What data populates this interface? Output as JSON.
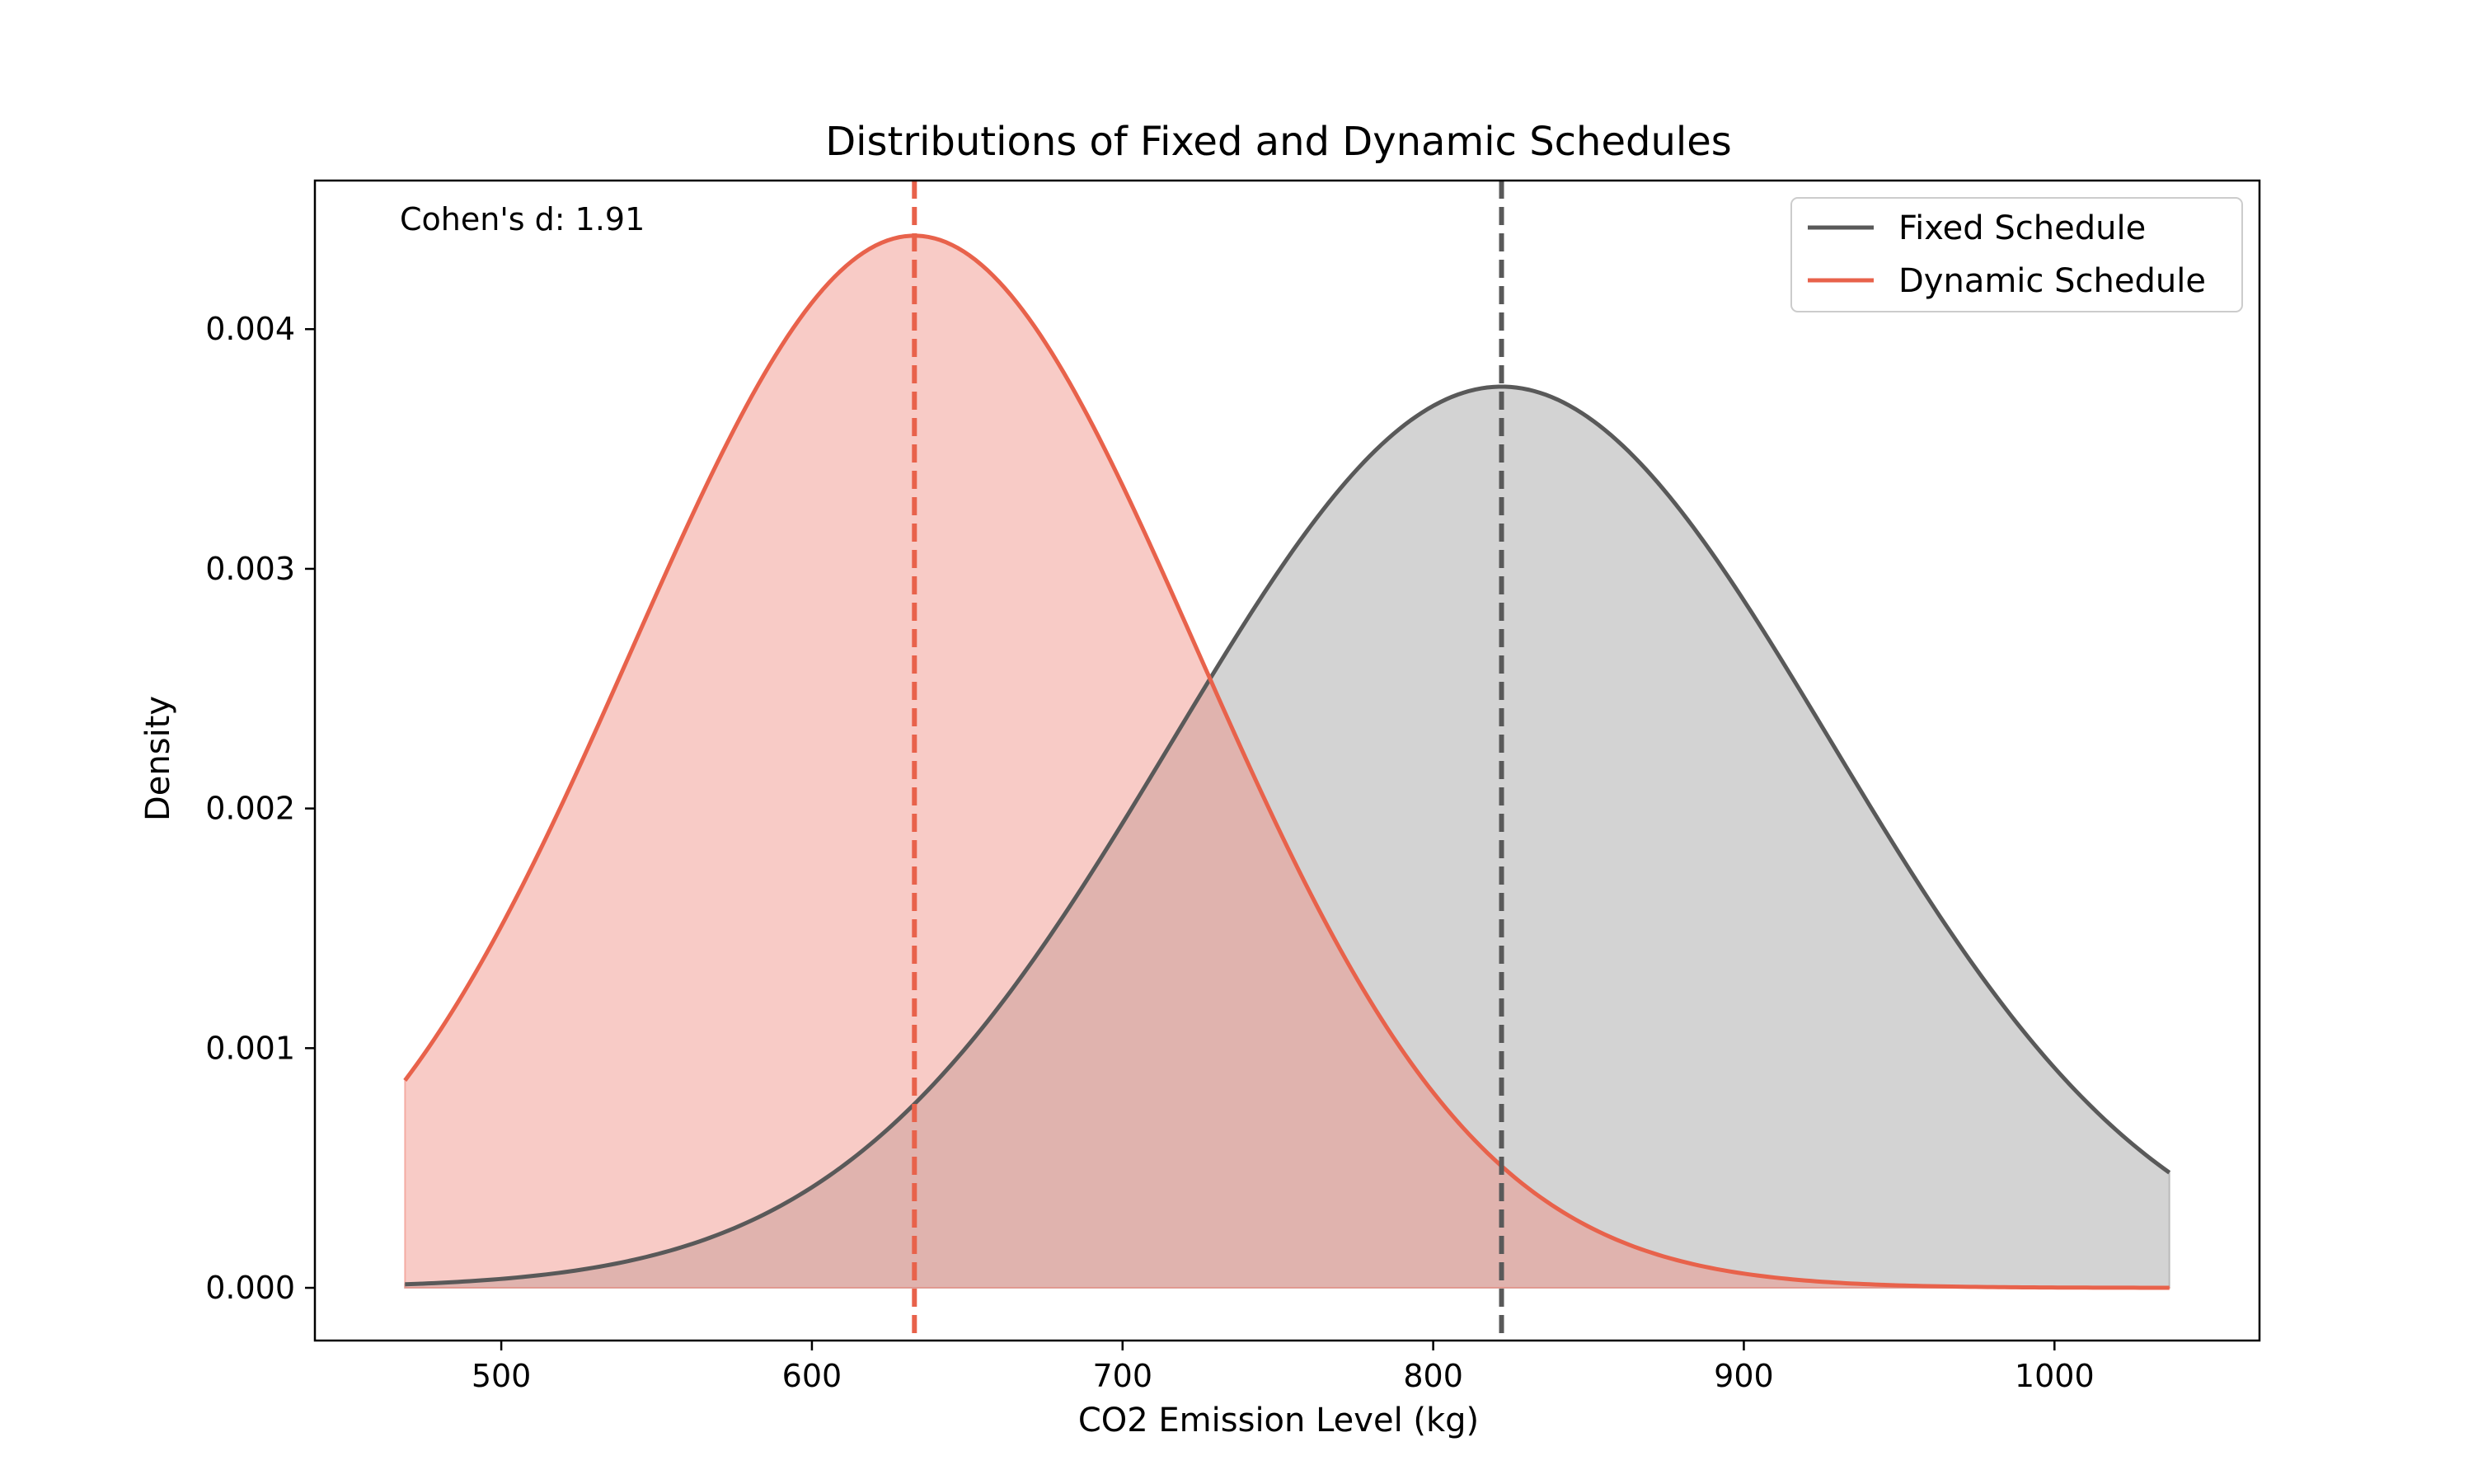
{
  "chart_data": {
    "type": "area",
    "title": "Distributions of Fixed and Dynamic Schedules",
    "xlabel": "CO2 Emission Level (kg)",
    "ylabel": "Density",
    "xlim": [
      440,
      1066
    ],
    "ylim": [
      -0.00022,
      0.00462
    ],
    "x_ticks": [
      500,
      600,
      700,
      800,
      900,
      1000
    ],
    "x_tick_labels": [
      "500",
      "600",
      "700",
      "800",
      "900",
      "1000"
    ],
    "y_ticks": [
      0.0,
      0.001,
      0.002,
      0.003,
      0.004
    ],
    "y_tick_labels": [
      "0.000",
      "0.001",
      "0.002",
      "0.003",
      "0.004"
    ],
    "x_range": [
      469,
      1037
    ],
    "grid": false,
    "legend_position": "top-right",
    "annotation": "Cohen's d: 1.91",
    "series": [
      {
        "name": "Fixed Schedule",
        "distribution": "normal",
        "mean": 822,
        "std": 106,
        "peak_density": 0.00376,
        "mean_line_x": 822,
        "color": "#595959",
        "fill_color": "#9e9e9e"
      },
      {
        "name": "Dynamic Schedule",
        "distribution": "normal",
        "mean": 633,
        "std": 91,
        "peak_density": 0.00439,
        "mean_line_x": 633,
        "color": "#e8624b",
        "fill_color": "#f08c80"
      }
    ]
  }
}
